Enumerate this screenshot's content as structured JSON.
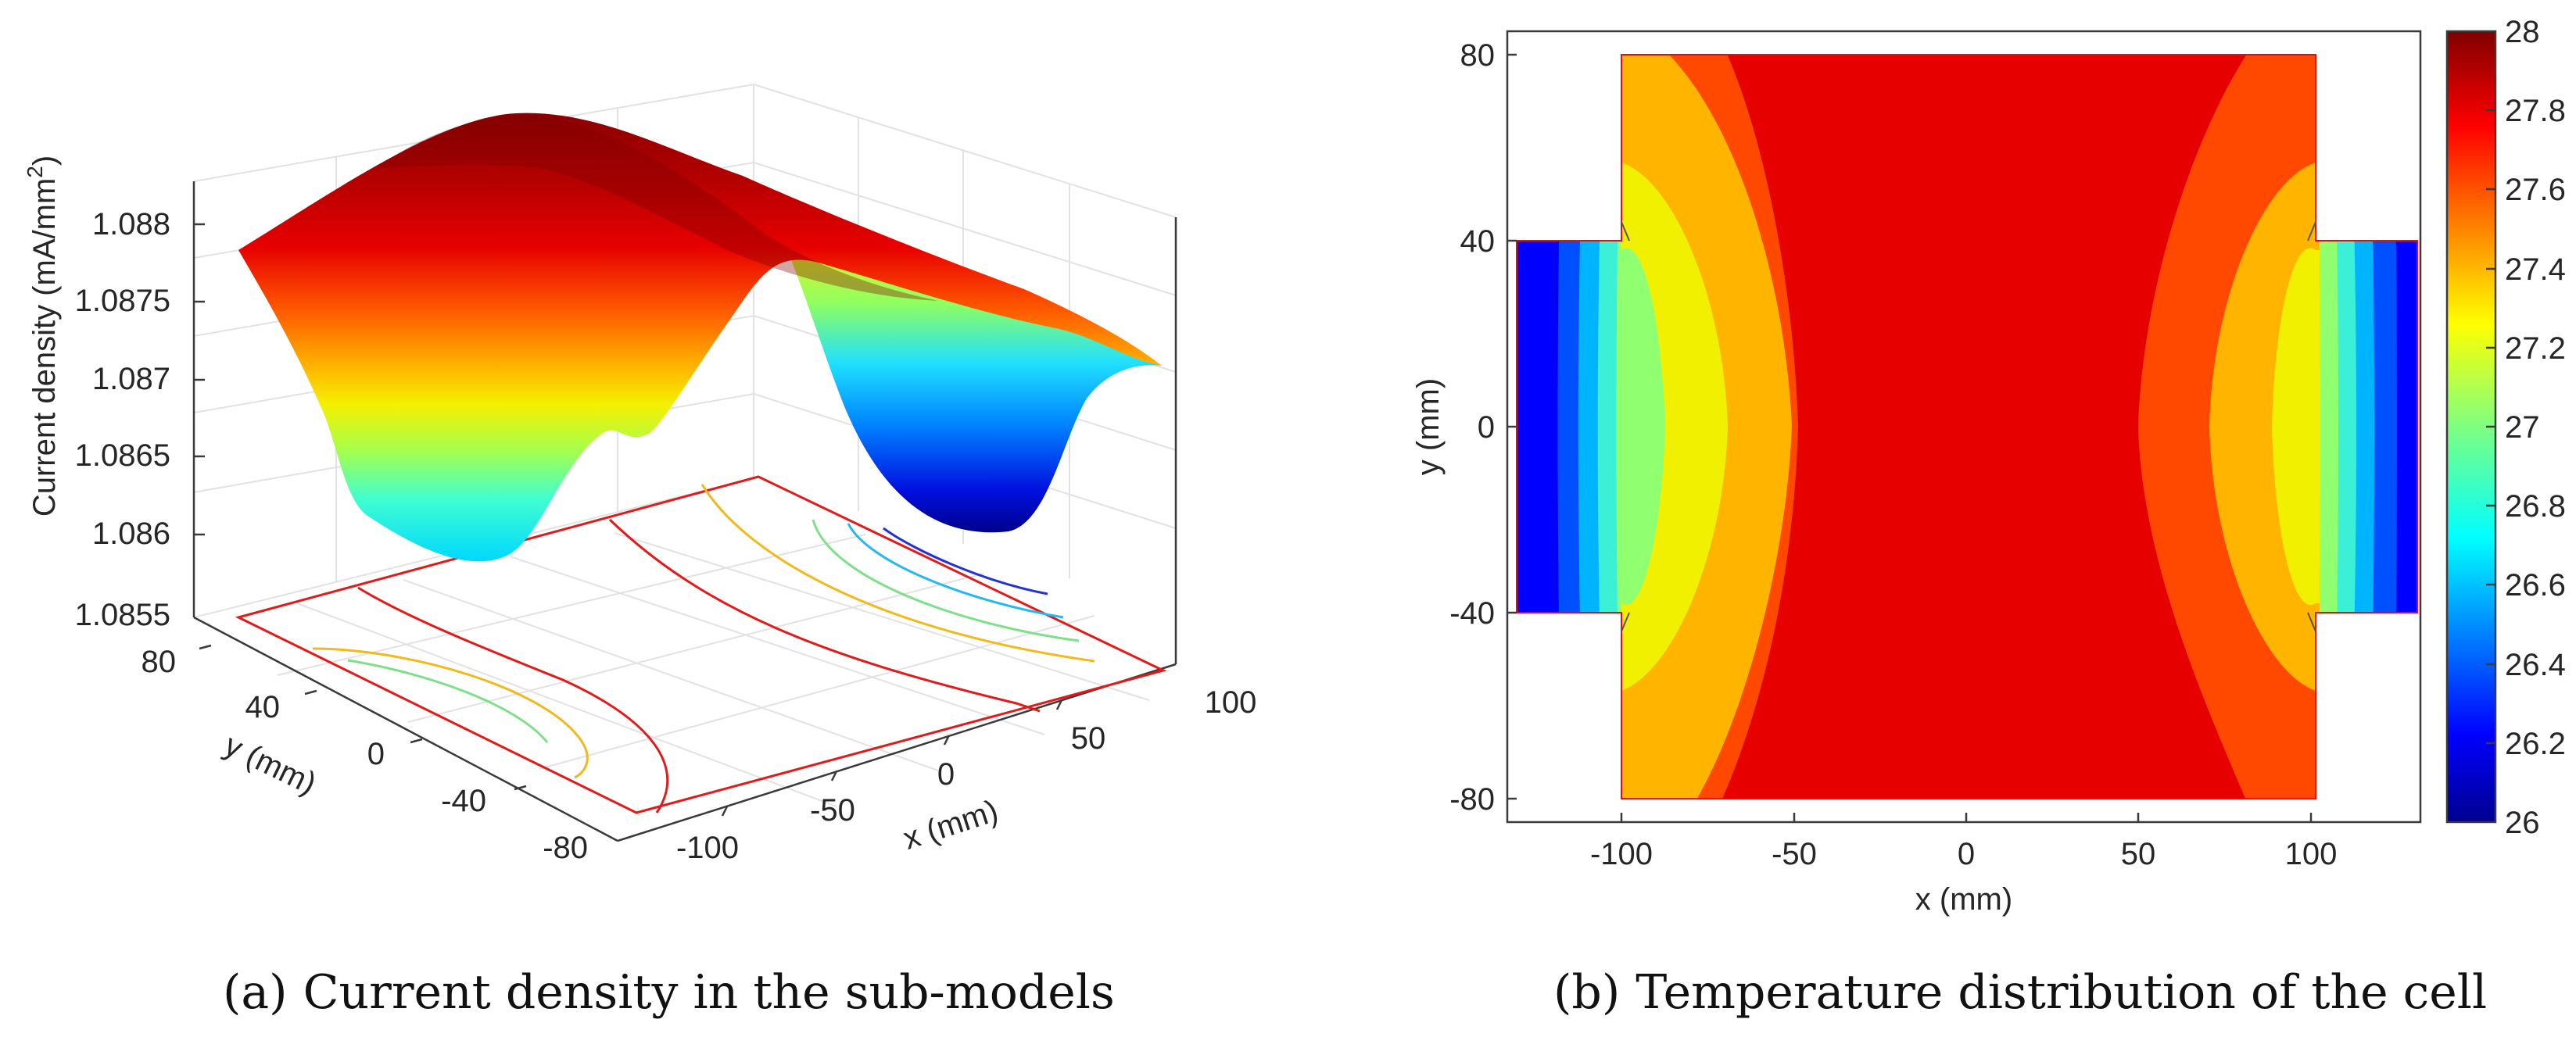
{
  "captions": {
    "a_label": "(a)",
    "a_text": "Current density in the sub-models",
    "b_label": "(b)",
    "b_text": "Temperature distribution of the cell"
  },
  "chart_data": [
    {
      "type": "surface",
      "title": "",
      "xlabel": "x (mm)",
      "ylabel": "y (mm)",
      "zlabel_main": "Current density (mA/mm",
      "zlabel_sup": "2",
      "zlabel_end": ")",
      "x_ticks": [
        "-100",
        "-50",
        "0",
        "50",
        "100"
      ],
      "y_ticks": [
        "80",
        "40",
        "0",
        "-40",
        "-80"
      ],
      "z_ticks": [
        "1.088",
        "1.0875",
        "1.087",
        "1.0865",
        "1.086",
        "1.0855"
      ],
      "xlim": [
        -100,
        100
      ],
      "ylim": [
        -80,
        80
      ],
      "zlim": [
        1.0855,
        1.0882
      ],
      "colormap": "jet",
      "contours_on_floor": true
    },
    {
      "type": "contour",
      "title": "",
      "xlabel": "x (mm)",
      "ylabel": "y (mm)",
      "x_ticks": [
        "-100",
        "-50",
        "0",
        "50",
        "100"
      ],
      "y_ticks": [
        "80",
        "40",
        "0",
        "-40",
        "-80"
      ],
      "xlim": [
        -130,
        130
      ],
      "ylim": [
        -85,
        85
      ],
      "colorbar_ticks": [
        "28",
        "27.8",
        "27.6",
        "27.4",
        "27.2",
        "27",
        "26.8",
        "26.6",
        "26.4",
        "26.2",
        "26"
      ],
      "colorbar_range": [
        26,
        28
      ],
      "colormap": "jet",
      "domain_shape": "cell body x∈[-98,98], y∈[-80,80]; tabs x∈[-128,-98] and [98,128], y∈[-40,40]"
    }
  ]
}
